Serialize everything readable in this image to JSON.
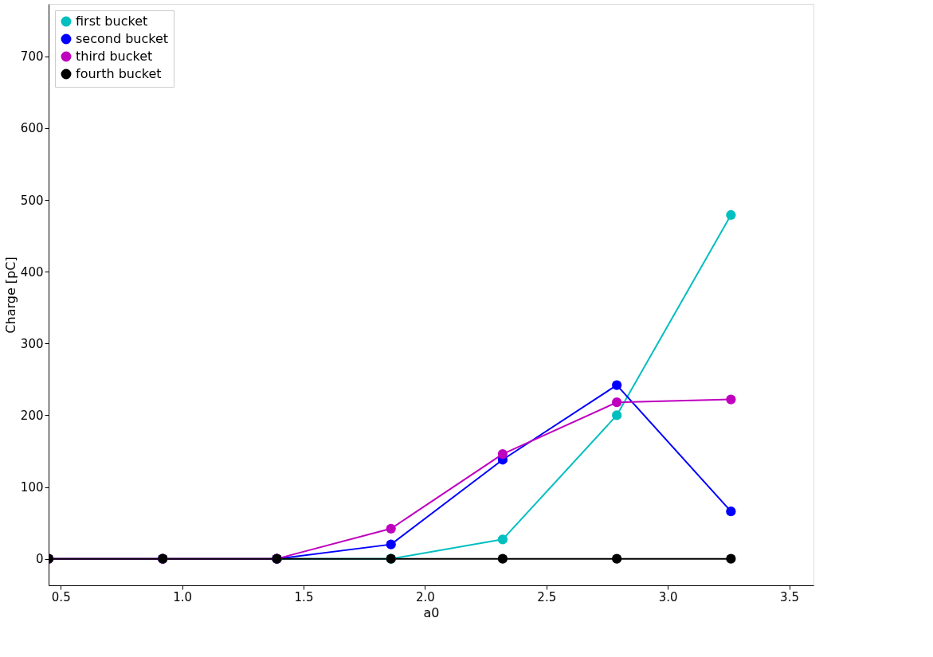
{
  "chart_data": {
    "type": "line",
    "xlabel": "a0",
    "ylabel": "Charge [pC]",
    "x": [
      0.45,
      0.92,
      1.39,
      1.86,
      2.32,
      2.79,
      3.26
    ],
    "series": [
      {
        "name": "first bucket",
        "color": "#00bfbf",
        "values": [
          null,
          null,
          0,
          0,
          27,
          200,
          479
        ]
      },
      {
        "name": "second bucket",
        "color": "#0000ff",
        "values": [
          0,
          0,
          0,
          20,
          138,
          242,
          66
        ]
      },
      {
        "name": "third bucket",
        "color": "#bf00bf",
        "values": [
          0,
          0,
          0,
          42,
          146,
          218,
          222
        ]
      },
      {
        "name": "fourth bucket",
        "color": "#000000",
        "values": [
          0,
          0,
          0,
          0,
          0,
          0,
          0
        ]
      }
    ],
    "xlim": [
      0.45,
      3.6
    ],
    "ylim": [
      -37,
      773
    ],
    "xticks": [
      0.5,
      {
        "value": 1,
        "label": "1.0"
      },
      1.5,
      {
        "value": 2,
        "label": "2.0"
      },
      2.5,
      {
        "value": 3,
        "label": "3.0"
      },
      3.5
    ],
    "yticks": [
      0,
      100,
      200,
      300,
      400,
      500,
      600,
      700
    ],
    "grid": false,
    "legend": "top left",
    "marker": "circle",
    "line_style": "solid"
  }
}
